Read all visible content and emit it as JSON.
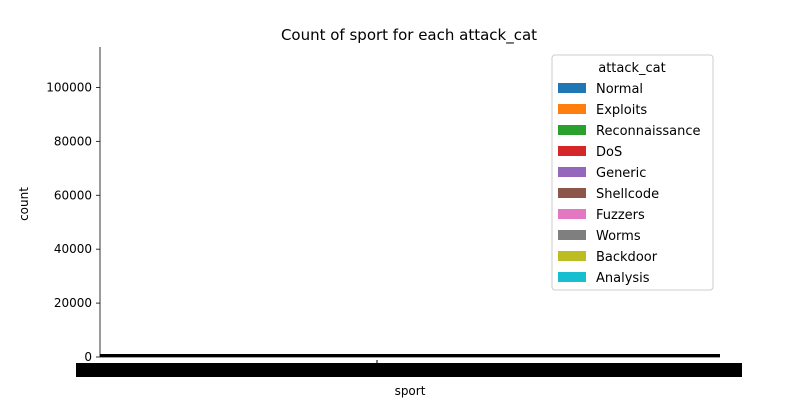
{
  "chart_data": {
    "type": "bar",
    "title": "Count of sport for each attack_cat",
    "xlabel": "sport",
    "ylabel": "count",
    "ylim": [
      0,
      115000
    ],
    "yticks": [
      0,
      20000,
      40000,
      60000,
      80000,
      100000
    ],
    "ytick_labels": [
      "0",
      "20000",
      "40000",
      "60000",
      "80000",
      "100000"
    ],
    "grid": false,
    "legend_position": "top-right",
    "legend_title": "attack_cat",
    "series": [
      {
        "name": "Normal",
        "color": "#1f77b4"
      },
      {
        "name": "Exploits",
        "color": "#ff7f0e"
      },
      {
        "name": "Reconnaissance",
        "color": "#2ca02c"
      },
      {
        "name": "DoS",
        "color": "#d62728"
      },
      {
        "name": "Generic",
        "color": "#9467bd"
      },
      {
        "name": "Shellcode",
        "color": "#8c564b"
      },
      {
        "name": "Fuzzers",
        "color": "#e377c2"
      },
      {
        "name": "Worms",
        "color": "#7f7f7f"
      },
      {
        "name": "Backdoor",
        "color": "#bcbd22"
      },
      {
        "name": "Analysis",
        "color": "#17becf"
      }
    ]
  }
}
